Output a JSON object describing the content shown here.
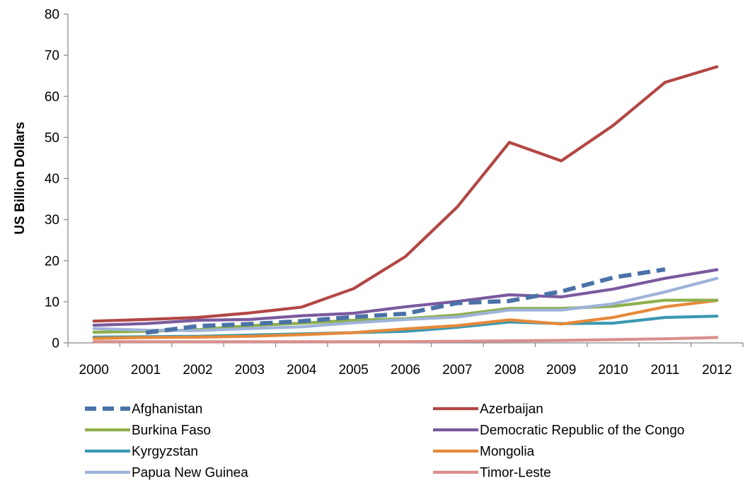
{
  "chart_data": {
    "type": "line",
    "title": "",
    "xlabel": "",
    "ylabel": "US Billion Dollars",
    "ylim": [
      0,
      80
    ],
    "yticks": [
      0,
      10,
      20,
      30,
      40,
      50,
      60,
      70,
      80
    ],
    "categories": [
      "2000",
      "2001",
      "2002",
      "2003",
      "2004",
      "2005",
      "2006",
      "2007",
      "2008",
      "2009",
      "2010",
      "2011",
      "2012"
    ],
    "grid": false,
    "legend_position": "bottom",
    "series": [
      {
        "name": "Afghanistan",
        "color": "#4a72a8",
        "dashed": true,
        "values": [
          null,
          2.5,
          4.1,
          4.6,
          5.3,
          6.3,
          7.1,
          9.7,
          10.2,
          12.5,
          15.9,
          17.9,
          null
        ]
      },
      {
        "name": "Azerbaijan",
        "color": "#b24745",
        "dashed": false,
        "values": [
          5.3,
          5.7,
          6.2,
          7.3,
          8.7,
          13.2,
          21.0,
          33.1,
          48.8,
          44.3,
          52.9,
          63.4,
          67.2
        ]
      },
      {
        "name": "Burkina Faso",
        "color": "#8eb04c",
        "dashed": false,
        "values": [
          2.6,
          2.8,
          3.2,
          4.2,
          4.8,
          5.5,
          5.9,
          6.8,
          8.4,
          8.4,
          8.9,
          10.4,
          10.4
        ]
      },
      {
        "name": "Democratic Republic of the Congo",
        "color": "#7a5a9e",
        "dashed": false,
        "values": [
          4.3,
          4.7,
          5.5,
          5.7,
          6.6,
          7.2,
          8.8,
          10.1,
          11.7,
          11.2,
          13.1,
          15.7,
          17.8
        ]
      },
      {
        "name": "Kyrgyzstan",
        "color": "#3b99b0",
        "dashed": false,
        "values": [
          1.4,
          1.5,
          1.6,
          1.9,
          2.2,
          2.5,
          2.8,
          3.8,
          5.1,
          4.7,
          4.8,
          6.2,
          6.5
        ]
      },
      {
        "name": "Mongolia",
        "color": "#e6893a",
        "dashed": false,
        "values": [
          1.1,
          1.3,
          1.4,
          1.6,
          2.0,
          2.5,
          3.4,
          4.2,
          5.6,
          4.6,
          6.2,
          8.8,
          10.3
        ]
      },
      {
        "name": "Papua New Guinea",
        "color": "#9db3d8",
        "dashed": false,
        "values": [
          3.5,
          3.1,
          3.0,
          3.5,
          3.9,
          4.9,
          5.7,
          6.3,
          8.0,
          8.0,
          9.5,
          12.4,
          15.7
        ]
      },
      {
        "name": "Timor-Leste",
        "color": "#d9908e",
        "dashed": false,
        "values": [
          0.3,
          0.3,
          0.3,
          0.3,
          0.3,
          0.3,
          0.3,
          0.4,
          0.5,
          0.6,
          0.8,
          1.0,
          1.3
        ]
      }
    ]
  }
}
